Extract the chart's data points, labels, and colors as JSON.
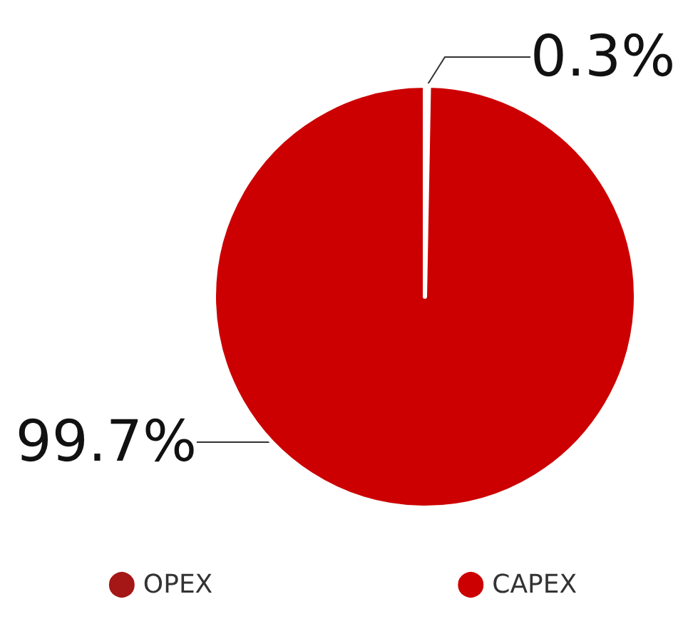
{
  "chart_data": {
    "type": "pie",
    "categories": [
      "OPEX",
      "CAPEX"
    ],
    "values": [
      0.3,
      99.7
    ],
    "colors": [
      "#a51616",
      "#cc0000"
    ],
    "value_labels": [
      "0.3%",
      "99.7%"
    ],
    "legend": "bottom"
  }
}
